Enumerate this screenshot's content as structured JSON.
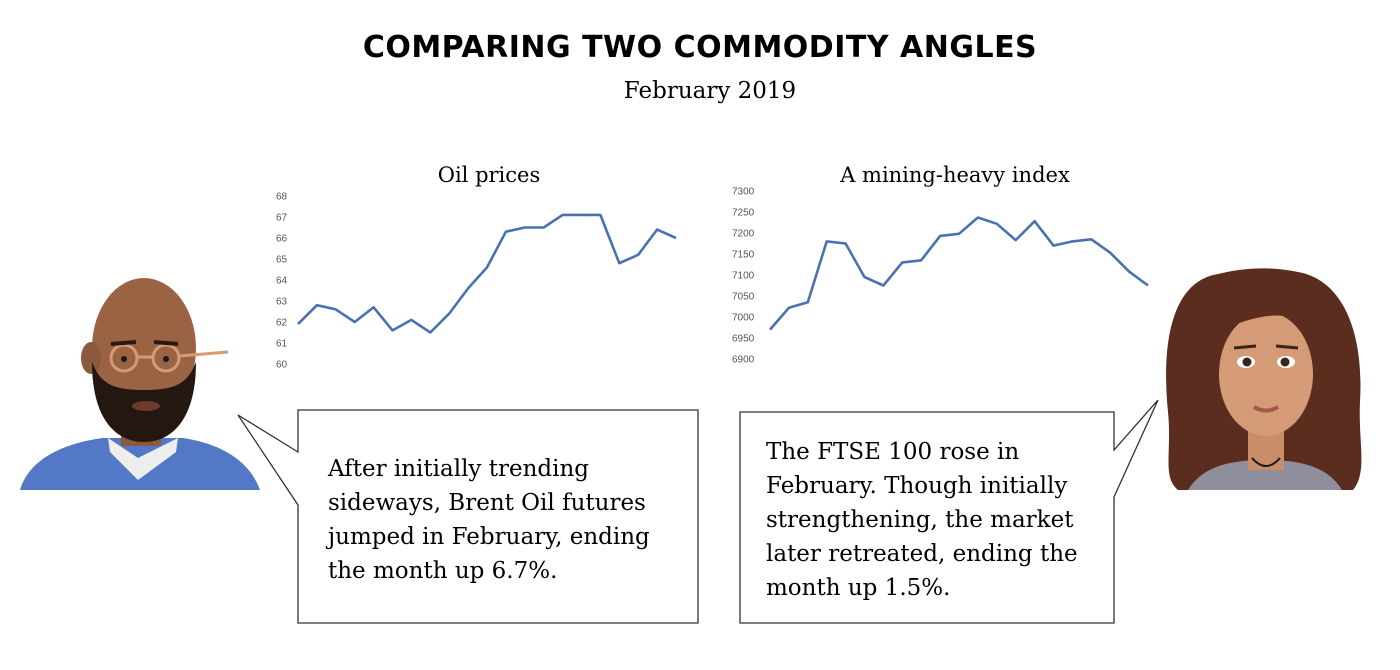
{
  "title": "COMPARING TWO COMMODITY ANGLES",
  "subtitle": "February 2019",
  "colors": {
    "line": "#4a72b0",
    "text": "#000000"
  },
  "chart_data": [
    {
      "type": "line",
      "title": "Oil prices",
      "xlabel": "",
      "ylabel": "",
      "ylim": [
        60,
        68
      ],
      "yticks": [
        "68",
        "67",
        "66",
        "65",
        "64",
        "63",
        "62",
        "61",
        "60"
      ],
      "grid": false,
      "values": [
        61.9,
        62.8,
        62.6,
        62.0,
        62.7,
        61.6,
        62.1,
        61.5,
        62.4,
        63.6,
        64.6,
        66.3,
        66.5,
        66.5,
        67.1,
        67.1,
        67.1,
        64.8,
        65.2,
        66.4,
        66.0
      ]
    },
    {
      "type": "line",
      "title": "A mining-heavy index",
      "xlabel": "",
      "ylabel": "",
      "ylim": [
        6900,
        7300
      ],
      "yticks": [
        "7300",
        "7250",
        "7200",
        "7150",
        "7100",
        "7050",
        "7000",
        "6950",
        "6900"
      ],
      "grid": false,
      "values": [
        6970,
        7022,
        7035,
        7180,
        7175,
        7095,
        7075,
        7130,
        7135,
        7193,
        7198,
        7237,
        7222,
        7183,
        7228,
        7170,
        7180,
        7185,
        7153,
        7108,
        7075
      ]
    }
  ],
  "bubbles": {
    "left": {
      "lines": [
        "After initially trending",
        "sideways, Brent Oil futures",
        "jumped in February, ending",
        "the month up 6.7%."
      ]
    },
    "right": {
      "lines": [
        "The FTSE 100 rose in",
        "February. Though initially",
        "strengthening, the market",
        "later retreated, ending the",
        "month up 1.5%."
      ]
    }
  }
}
